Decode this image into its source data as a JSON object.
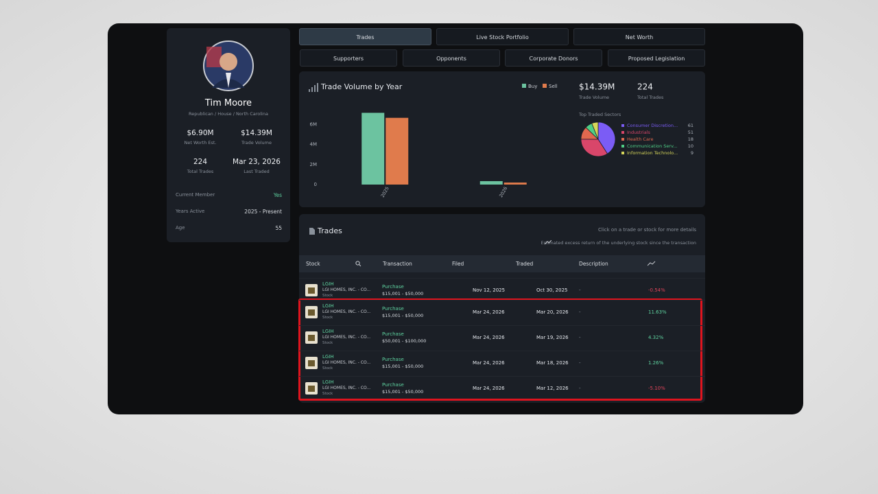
{
  "profile": {
    "name": "Tim Moore",
    "subtitle": "Republican / House / North Carolina",
    "stats": [
      {
        "value": "$6.90M",
        "label": "Net Worth Est."
      },
      {
        "value": "$14.39M",
        "label": "Trade Volume"
      },
      {
        "value": "224",
        "label": "Total Trades"
      },
      {
        "value": "Mar 23, 2026",
        "label": "Last Traded"
      }
    ],
    "details": [
      {
        "label": "Current Member",
        "value": "Yes"
      },
      {
        "label": "Years Active",
        "value": "2025 - Present"
      },
      {
        "label": "Age",
        "value": "55"
      }
    ]
  },
  "tabs": [
    "Trades",
    "Live Stock Portfolio",
    "Net Worth",
    "Supporters",
    "Opponents",
    "Corporate Donors",
    "Proposed Legislation"
  ],
  "summary": [
    {
      "value": "$14.39M",
      "label": "Trade Volume"
    },
    {
      "value": "224",
      "label": "Total Trades"
    }
  ],
  "chart_data": [
    {
      "type": "bar",
      "title": "Trade Volume by Year",
      "categories": [
        "2025",
        "2026"
      ],
      "series": [
        {
          "name": "Buy",
          "color": "#6cc3a0",
          "values": [
            7150000,
            340000
          ]
        },
        {
          "name": "Sell",
          "color": "#e07b4c",
          "values": [
            6650000,
            200000
          ]
        }
      ],
      "ylim": [
        0,
        8000000
      ],
      "yticks": [
        0,
        {
          "value": 2000000,
          "label": "2M"
        },
        {
          "value": 4000000,
          "label": "4M"
        },
        {
          "value": 6000000,
          "label": "6M"
        }
      ]
    },
    {
      "type": "pie",
      "title": "Top Traded Sectors",
      "categories": [
        "Consumer Discretion...",
        "Industrials",
        "Health Care",
        "Communication Serv...",
        "Information Technolo..."
      ],
      "values": [
        61,
        51,
        18,
        10,
        9
      ],
      "colors": [
        "#7b5cf5",
        "#d9466a",
        "#e0684f",
        "#4fcf86",
        "#d6d65a"
      ]
    }
  ],
  "trades": {
    "title": "Trades",
    "hint": "Click on a trade or stock for more details",
    "note": "Estimated excess return of the underlying stock since the transaction",
    "columns": [
      "Stock",
      "Transaction",
      "Filed",
      "Traded",
      "Description"
    ],
    "rows": [
      {
        "ticker": "LGIH",
        "company": "LGI HOMES, INC. - CO...",
        "kind": "Stock",
        "transaction": "Purchase",
        "amount": "$15,001 - $50,000",
        "filed": "Nov 12, 2025",
        "traded": "Oct 30, 2025",
        "description": "-",
        "return": "-0.54%"
      },
      {
        "ticker": "LGIH",
        "company": "LGI HOMES, INC. - CO...",
        "kind": "Stock",
        "transaction": "Purchase",
        "amount": "$15,001 - $50,000",
        "filed": "Mar 24, 2026",
        "traded": "Mar 20, 2026",
        "description": "-",
        "return": "11.63%"
      },
      {
        "ticker": "LGIH",
        "company": "LGI HOMES, INC. - CO...",
        "kind": "Stock",
        "transaction": "Purchase",
        "amount": "$50,001 - $100,000",
        "filed": "Mar 24, 2026",
        "traded": "Mar 19, 2026",
        "description": "-",
        "return": "4.32%"
      },
      {
        "ticker": "LGIH",
        "company": "LGI HOMES, INC. - CO...",
        "kind": "Stock",
        "transaction": "Purchase",
        "amount": "$15,001 - $50,000",
        "filed": "Mar 24, 2026",
        "traded": "Mar 18, 2026",
        "description": "-",
        "return": "1.26%"
      },
      {
        "ticker": "LGIH",
        "company": "LGI HOMES, INC. - CO...",
        "kind": "Stock",
        "transaction": "Purchase",
        "amount": "$15,001 - $50,000",
        "filed": "Mar 24, 2026",
        "traded": "Mar 12, 2026",
        "description": "-",
        "return": "-5.10%"
      }
    ]
  }
}
